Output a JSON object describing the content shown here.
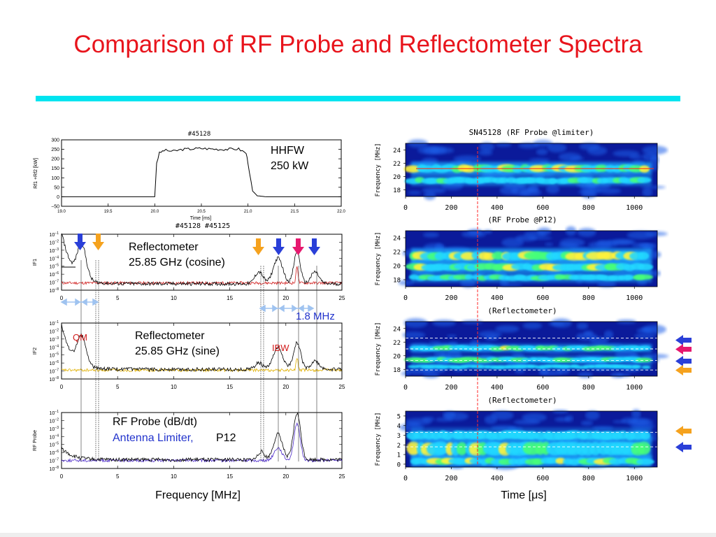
{
  "slide": {
    "title": "Comparison of RF Probe and Reflectometer Spectra",
    "accent_color": "#e8141c",
    "rule_color": "#00e4f0"
  },
  "left": {
    "power_panel": {
      "shot": "#45128",
      "ylabel": "Rf1 +Rf2 [kW]",
      "xlabel": "Time [ms]",
      "yticks": [
        "300",
        "250",
        "200",
        "150",
        "100",
        "50",
        "0",
        "−50"
      ],
      "xticks": [
        "19.0",
        "19.5",
        "20.0",
        "20.5",
        "21.0",
        "21.5",
        "22.0"
      ],
      "note_line1": "HHFW",
      "note_line2": "250 kW"
    },
    "shots_title": "#45128 #45125",
    "ylabels": [
      "IF1",
      "IF2",
      "RF Probe"
    ],
    "freq_ticks": [
      "0",
      "5",
      "10",
      "15",
      "20",
      "25"
    ],
    "panel1_line1": "Reflectometer",
    "panel1_line2": "25.85 GHz (cosine)",
    "panel2_line1": "Reflectometer",
    "panel2_line2": "25.85 GHz (sine)",
    "panel3_line1": "RF Probe (dB/dt)",
    "panel3_line2a": "Antenna Limiter,",
    "panel3_line2b": "P12",
    "spacing_label": "1.8 MHz",
    "qm_label": "QM",
    "ibw_label": "IBW",
    "xlabel": "Frequency [MHz]",
    "colors": {
      "blue_arrow": "#2a3fd8",
      "orange_arrow": "#f5a21e",
      "pink_arrow": "#e6186e",
      "label_blue": "#2233cc",
      "label_red": "#d11a1a"
    }
  },
  "right": {
    "spec1_title": "SN45128 (RF Probe @limiter)",
    "spec2_title": "(RF Probe @P12)",
    "spec3_title": "(Reflectometer)",
    "spec4_title": "(Reflectometer)",
    "spec_ylabel": "Frequency [MHz]",
    "spec_yticks_a": [
      "24",
      "22",
      "20",
      "18"
    ],
    "spec_yticks_b": [
      "5",
      "4",
      "3",
      "2",
      "1",
      "0"
    ],
    "time_ticks": [
      "0",
      "200",
      "400",
      "600",
      "800",
      "1000"
    ],
    "xlabel": "Time [μs]"
  },
  "chart_data": [
    {
      "type": "line",
      "title": "#45128",
      "xlabel": "Time [ms]",
      "ylabel": "Rf1 +Rf2 [kW]",
      "xlim": [
        19.0,
        22.0
      ],
      "ylim": [
        -50,
        300
      ],
      "series": [
        {
          "x": [
            19.0,
            20.0,
            20.02,
            20.05,
            20.1,
            20.2,
            20.3,
            20.5,
            20.7,
            20.9,
            20.98,
            21.0,
            21.05,
            21.1,
            21.2,
            21.5,
            22.0
          ],
          "values": [
            0,
            0,
            180,
            230,
            245,
            240,
            250,
            255,
            250,
            252,
            230,
            180,
            30,
            5,
            0,
            0,
            0
          ]
        }
      ]
    },
    {
      "type": "line",
      "title": "#45128 #45125",
      "xlabel": "Frequency [MHz]",
      "ylabel": "IF1",
      "xlim": [
        0,
        25
      ],
      "ylim": [
        "1e-8",
        "1e-1"
      ],
      "annotations": [
        "Reflectometer",
        "25.85 GHz (cosine)",
        "1.8 MHz"
      ],
      "peaks_mhz": [
        1.8,
        17.6,
        19.3,
        21.0,
        22.6
      ]
    },
    {
      "type": "line",
      "xlabel": "Frequency [MHz]",
      "ylabel": "IF2",
      "xlim": [
        0,
        25
      ],
      "ylim": [
        "1e-8",
        "1e-1"
      ],
      "annotations": [
        "Reflectometer",
        "25.85 GHz (sine)",
        "QM",
        "IBW"
      ],
      "peaks_mhz": [
        1.8,
        19.3,
        21.0
      ]
    },
    {
      "type": "line",
      "xlabel": "Frequency [MHz]",
      "ylabel": "RF Probe",
      "xlim": [
        0,
        25
      ],
      "ylim": [
        "1e-8",
        "1e-1"
      ],
      "annotations": [
        "RF Probe (dB/dt)",
        "Antenna Limiter, P12"
      ],
      "peaks_mhz": [
        19.3,
        21.0
      ]
    },
    {
      "type": "heatmap",
      "title": "SN45128 (RF Probe @limiter)",
      "xlabel": "Time [μs]",
      "ylabel": "Frequency [MHz]",
      "xlim": [
        0,
        1100
      ],
      "ylim": [
        17,
        25
      ],
      "bands_mhz": [
        21.0,
        19.2
      ]
    },
    {
      "type": "heatmap",
      "title": "(RF Probe @P12)",
      "xlabel": "Time [μs]",
      "ylabel": "Frequency [MHz]",
      "xlim": [
        0,
        1100
      ],
      "ylim": [
        17,
        25
      ],
      "bands_mhz": [
        21.2,
        19.5,
        18.2
      ]
    },
    {
      "type": "heatmap",
      "title": "(Reflectometer)",
      "xlabel": "Time [μs]",
      "ylabel": "Frequency [MHz]",
      "xlim": [
        0,
        1100
      ],
      "ylim": [
        17,
        25
      ],
      "bands_mhz": [
        22.5,
        21.0,
        19.3,
        17.8
      ]
    },
    {
      "type": "heatmap",
      "title": "(Reflectometer)",
      "xlabel": "Time [μs]",
      "ylabel": "Frequency [MHz]",
      "xlim": [
        0,
        1100
      ],
      "ylim": [
        0,
        5.5
      ],
      "bands_mhz": [
        3.3,
        1.8
      ]
    }
  ]
}
